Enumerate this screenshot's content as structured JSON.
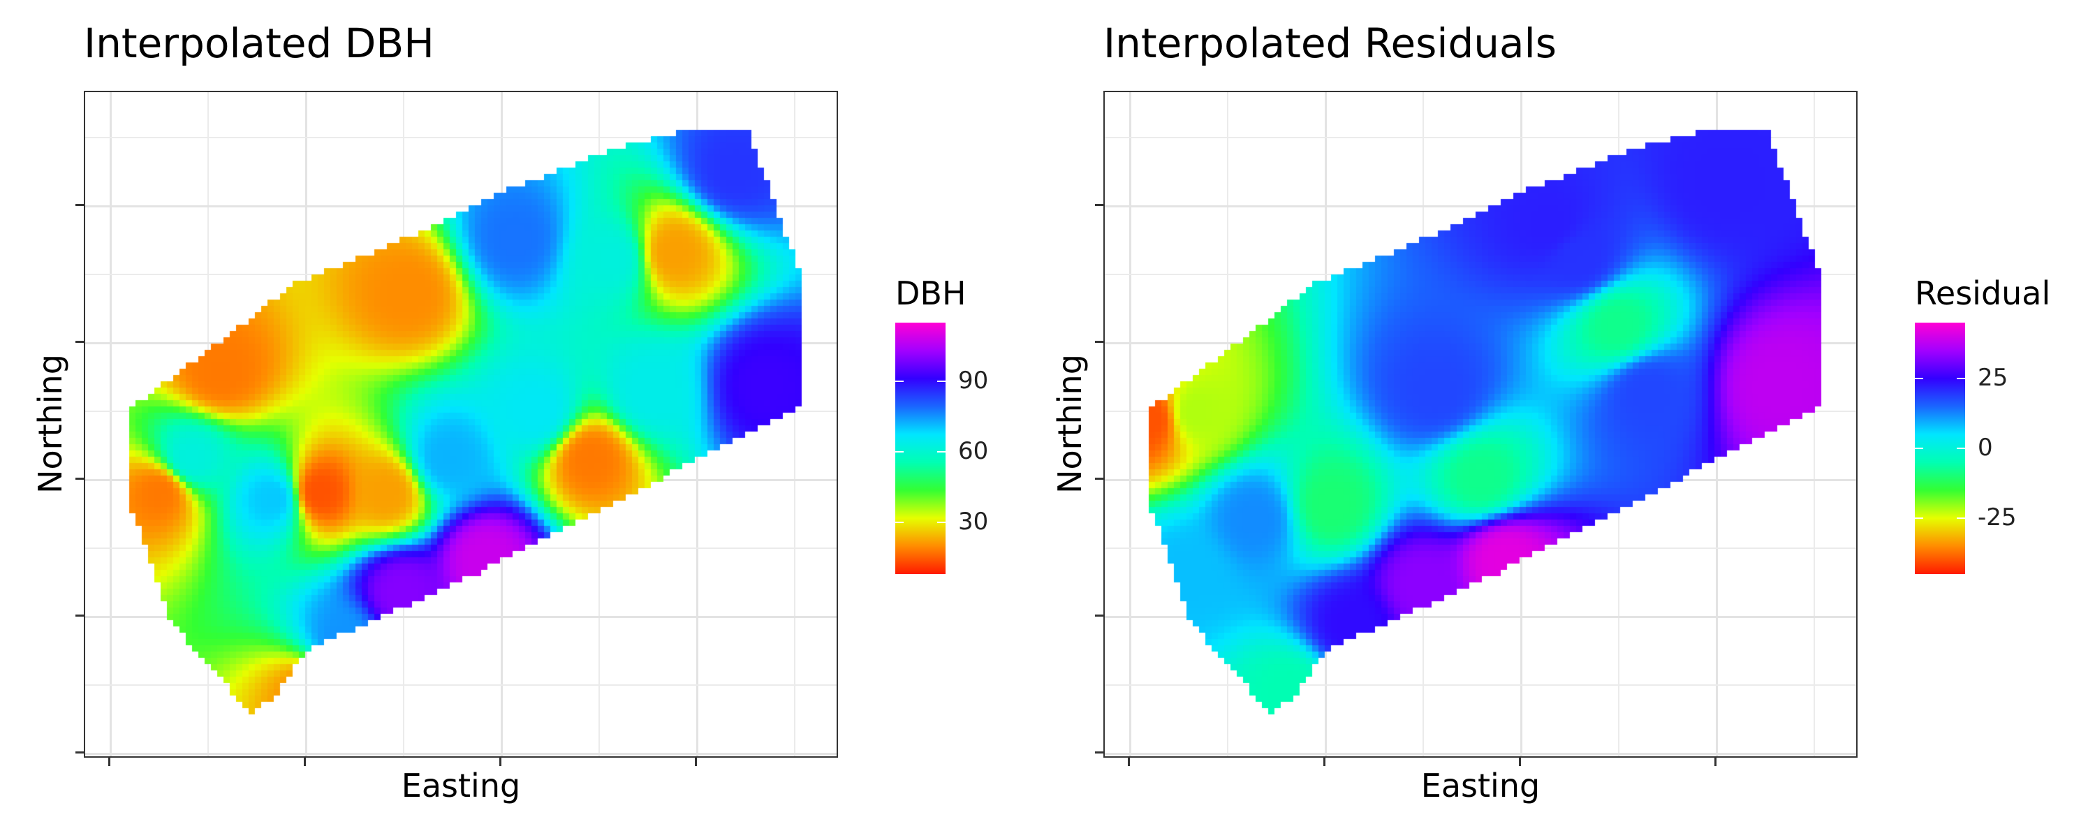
{
  "chart_data": [
    {
      "type": "heatmap",
      "title": "Interpolated DBH",
      "xlabel": "Easting",
      "ylabel": "Northing",
      "legend": {
        "title": "DBH",
        "ticks": [
          30,
          60,
          90
        ],
        "range": [
          8,
          115
        ],
        "placement": "right"
      },
      "colormap": [
        "#ff1a00",
        "#ff8c00",
        "#e6ff00",
        "#33ff33",
        "#00ffb3",
        "#00e6ff",
        "#1a66ff",
        "#3300ff",
        "#a300ff",
        "#ff00d4"
      ],
      "hotspots": [
        {
          "easting": 0.53,
          "northing": 0.3,
          "value": 108
        },
        {
          "easting": 0.42,
          "northing": 0.25,
          "value": 100
        },
        {
          "easting": 0.9,
          "northing": 0.56,
          "value": 92
        },
        {
          "easting": 0.86,
          "northing": 0.88,
          "value": 85
        },
        {
          "easting": 0.57,
          "northing": 0.78,
          "value": 78
        },
        {
          "easting": 0.34,
          "northing": 0.18,
          "value": 75
        },
        {
          "easting": 0.25,
          "northing": 0.39,
          "value": 70
        },
        {
          "easting": 0.48,
          "northing": 0.45,
          "value": 72
        },
        {
          "easting": 0.14,
          "northing": 0.45,
          "value": 62
        },
        {
          "easting": 0.6,
          "northing": 0.52,
          "value": 66
        },
        {
          "easting": 0.75,
          "northing": 0.55,
          "value": 64
        },
        {
          "easting": 0.7,
          "northing": 0.75,
          "value": 62
        },
        {
          "easting": 0.1,
          "northing": 0.4,
          "value": 18
        },
        {
          "easting": 0.31,
          "northing": 0.4,
          "value": 14
        },
        {
          "easting": 0.18,
          "northing": 0.58,
          "value": 18
        },
        {
          "easting": 0.43,
          "northing": 0.7,
          "value": 20
        },
        {
          "easting": 0.67,
          "northing": 0.45,
          "value": 18
        },
        {
          "easting": 0.78,
          "northing": 0.76,
          "value": 22
        },
        {
          "easting": 0.4,
          "northing": 0.4,
          "value": 22
        },
        {
          "easting": 0.3,
          "northing": 0.1,
          "value": 20
        }
      ]
    },
    {
      "type": "heatmap",
      "title": "Interpolated Residuals",
      "xlabel": "Easting",
      "ylabel": "Northing",
      "legend": {
        "title": "Residual",
        "ticks": [
          -25,
          0,
          25
        ],
        "range": [
          -45,
          45
        ],
        "placement": "right"
      },
      "colormap": [
        "#ff1a00",
        "#ff8c00",
        "#e6ff00",
        "#33ff33",
        "#00ffb3",
        "#00e6ff",
        "#1a66ff",
        "#3300ff",
        "#a300ff",
        "#ff00d4"
      ],
      "hotspots": [
        {
          "easting": 0.53,
          "northing": 0.3,
          "value": 42
        },
        {
          "easting": 0.42,
          "northing": 0.26,
          "value": 33
        },
        {
          "easting": 0.89,
          "northing": 0.56,
          "value": 38
        },
        {
          "easting": 0.82,
          "northing": 0.86,
          "value": 22
        },
        {
          "easting": 0.59,
          "northing": 0.8,
          "value": 22
        },
        {
          "easting": 0.33,
          "northing": 0.2,
          "value": 24
        },
        {
          "easting": 0.63,
          "northing": 0.75,
          "value": 20
        },
        {
          "easting": 0.72,
          "northing": 0.55,
          "value": 18
        },
        {
          "easting": 0.44,
          "northing": 0.55,
          "value": 18
        },
        {
          "easting": 0.2,
          "northing": 0.36,
          "value": 12
        },
        {
          "easting": 0.11,
          "northing": 0.28,
          "value": 8
        },
        {
          "easting": 0.06,
          "northing": 0.51,
          "value": -40
        },
        {
          "easting": 0.12,
          "northing": 0.52,
          "value": -22
        },
        {
          "easting": 0.3,
          "northing": 0.38,
          "value": -10
        },
        {
          "easting": 0.5,
          "northing": 0.42,
          "value": -8
        },
        {
          "easting": 0.68,
          "northing": 0.65,
          "value": -8
        },
        {
          "easting": 0.25,
          "northing": 0.1,
          "value": -5
        }
      ]
    }
  ]
}
